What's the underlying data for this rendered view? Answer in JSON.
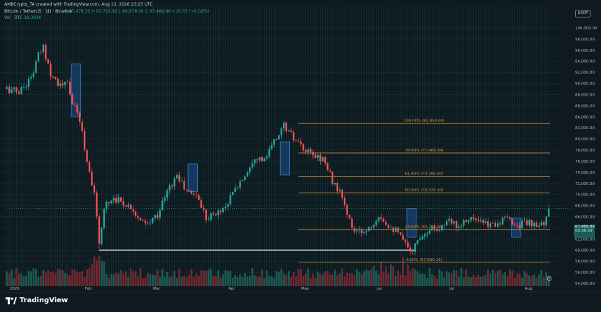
{
  "header": {
    "author_line": "AMBCrypto_TA created with TradingView.com, Aug 13, 2026 23:23 UTC",
    "symbol_line": "Bitcoin / TetherUS · 1D · Binance",
    "ohlc_line": "O 67,479.33  H 67,722.82  L 66,878.00  C 67,489.88  +10.55 (+0.02%)",
    "volume_label": "Vol · BTC",
    "volume_value": "18.391K",
    "currency": "USDT"
  },
  "price_tag": {
    "top": "67,489.88",
    "bottom": "00:36:59"
  },
  "logo_text": "TradingView",
  "colors": {
    "background": "#0e1a1f",
    "grid": "#16323a",
    "up": "#26a69a",
    "down": "#ef5350",
    "fib_line": "#d89030",
    "fib_text": "#e09040",
    "support_line": "#e0e0e0",
    "highlight_fill": "#1b4f8c",
    "axis_text": "#b2bcc4"
  },
  "chart_data": {
    "type": "candlestick",
    "title": "Bitcoin / TetherUS · 1D · Binance",
    "x_tick_labels": [
      "2026",
      "Feb",
      "Mar",
      "Apr",
      "May",
      "Jun",
      "Jul",
      "Aug"
    ],
    "x_tick_days": [
      0,
      31,
      59,
      90,
      120,
      151,
      181,
      212
    ],
    "ylim": [
      53500,
      101500
    ],
    "y_ticks": [
      54000,
      56000,
      58000,
      60000,
      62000,
      64000,
      66000,
      68000,
      70000,
      72000,
      74000,
      76000,
      78000,
      80000,
      82000,
      84000,
      86000,
      88000,
      90000,
      92000,
      94000,
      96000,
      98000,
      100000
    ],
    "last_price": 67489.88,
    "price_anchors": [
      [
        0,
        89000
      ],
      [
        5,
        88500
      ],
      [
        10,
        91000
      ],
      [
        13,
        95000
      ],
      [
        15,
        96500
      ],
      [
        18,
        92000
      ],
      [
        22,
        89500
      ],
      [
        25,
        90000
      ],
      [
        27,
        86500
      ],
      [
        30,
        83500
      ],
      [
        33,
        76000
      ],
      [
        36,
        70500
      ],
      [
        38,
        60500
      ],
      [
        40,
        68000
      ],
      [
        44,
        69500
      ],
      [
        48,
        68500
      ],
      [
        52,
        67500
      ],
      [
        55,
        65000
      ],
      [
        58,
        64500
      ],
      [
        62,
        66500
      ],
      [
        66,
        70500
      ],
      [
        70,
        73500
      ],
      [
        74,
        70500
      ],
      [
        78,
        70000
      ],
      [
        82,
        66000
      ],
      [
        86,
        66500
      ],
      [
        90,
        68000
      ],
      [
        94,
        71000
      ],
      [
        98,
        73500
      ],
      [
        102,
        77000
      ],
      [
        106,
        76000
      ],
      [
        110,
        79500
      ],
      [
        114,
        82500
      ],
      [
        118,
        80000
      ],
      [
        122,
        78000
      ],
      [
        126,
        77000
      ],
      [
        130,
        76500
      ],
      [
        134,
        72500
      ],
      [
        138,
        69500
      ],
      [
        141,
        65000
      ],
      [
        144,
        63000
      ],
      [
        147,
        63500
      ],
      [
        150,
        64500
      ],
      [
        153,
        66500
      ],
      [
        156,
        65000
      ],
      [
        160,
        63500
      ],
      [
        164,
        61000
      ],
      [
        167,
        60000
      ],
      [
        170,
        62500
      ],
      [
        174,
        64000
      ],
      [
        178,
        64000
      ],
      [
        182,
        65000
      ],
      [
        186,
        64500
      ],
      [
        190,
        66000
      ],
      [
        194,
        65000
      ],
      [
        198,
        64500
      ],
      [
        202,
        65000
      ],
      [
        206,
        65500
      ],
      [
        210,
        64500
      ],
      [
        214,
        65000
      ],
      [
        218,
        64000
      ],
      [
        222,
        65500
      ],
      [
        224,
        63800
      ]
    ],
    "volume_scale_max": 100,
    "fib_levels": [
      {
        "label": "100.00% (82,850.00)",
        "price": 82850
      },
      {
        "label": "78.60% (77,489.34)",
        "price": 77489.34
      },
      {
        "label": "61.80% (73,280.97)",
        "price": 73280.97
      },
      {
        "label": "50.00% (70,325.10)",
        "price": 70325.1
      },
      {
        "label": "23.60% (63,711.95)",
        "price": 63711.95
      },
      {
        "label": "0.00% (57,800.19)",
        "price": 57800.19
      }
    ],
    "fib_start_day": 120,
    "support_line": {
      "price": 60000,
      "from_day": 38,
      "to_day": 168
    },
    "highlight_zones": [
      {
        "day_start": 27,
        "day_end": 30,
        "price_low": 84000,
        "price_high": 93500
      },
      {
        "day_start": 75,
        "day_end": 78,
        "price_low": 70500,
        "price_high": 75500
      },
      {
        "day_start": 113,
        "day_end": 116,
        "price_low": 73500,
        "price_high": 79500
      },
      {
        "day_start": 165,
        "day_end": 168,
        "price_low": 62300,
        "price_high": 67500
      },
      {
        "day_start": 208,
        "day_end": 211,
        "price_low": 62300,
        "price_high": 65800
      }
    ],
    "total_days": 224
  }
}
